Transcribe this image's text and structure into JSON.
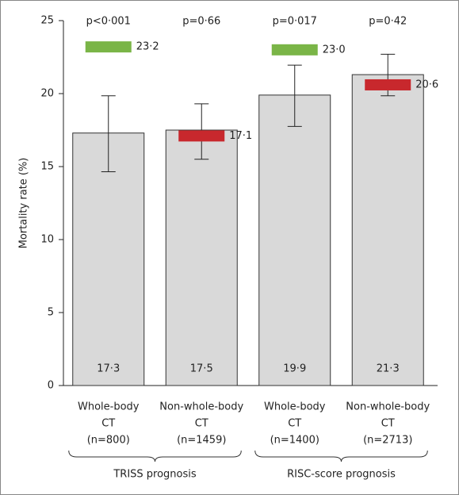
{
  "chart_data": {
    "type": "bar",
    "y_label": "Mortality rate (%)",
    "categories": [
      [
        "Whole-body",
        "CT",
        "(n=800)"
      ],
      [
        "Non-whole-body",
        "CT",
        "(n=1459)"
      ],
      [
        "Whole-body",
        "CT",
        "(n=1400)"
      ],
      [
        "Non-whole-body",
        "CT",
        "(n=2713)"
      ]
    ],
    "values": [
      17.3,
      17.5,
      19.9,
      21.3
    ],
    "value_labels": [
      "17·3",
      "17·5",
      "19·9",
      "21·3"
    ],
    "color": "#d9d9d9",
    "ci": [
      [
        14.65,
        19.85
      ],
      [
        15.5,
        19.3
      ],
      [
        17.75,
        21.95
      ],
      [
        19.85,
        22.7
      ]
    ],
    "expected": {
      "values": [
        23.2,
        17.1,
        23.0,
        20.6
      ],
      "value_labels": [
        "23·2",
        "17·1",
        "23·0",
        "20·6"
      ],
      "colors": [
        "#7ab547",
        "#c8282d",
        "#7ab547",
        "#c8282d"
      ]
    },
    "p_values": [
      "p<0·001",
      "p=0·66",
      "p=0·017",
      "p=0·42"
    ],
    "groups": [
      {
        "label": "TRISS prognosis",
        "span": [
          0,
          1
        ]
      },
      {
        "label": "RISC-score prognosis",
        "span": [
          2,
          3
        ]
      }
    ],
    "ylim": [
      0,
      25
    ],
    "yticks": [
      0,
      5,
      10,
      15,
      20,
      25
    ]
  }
}
